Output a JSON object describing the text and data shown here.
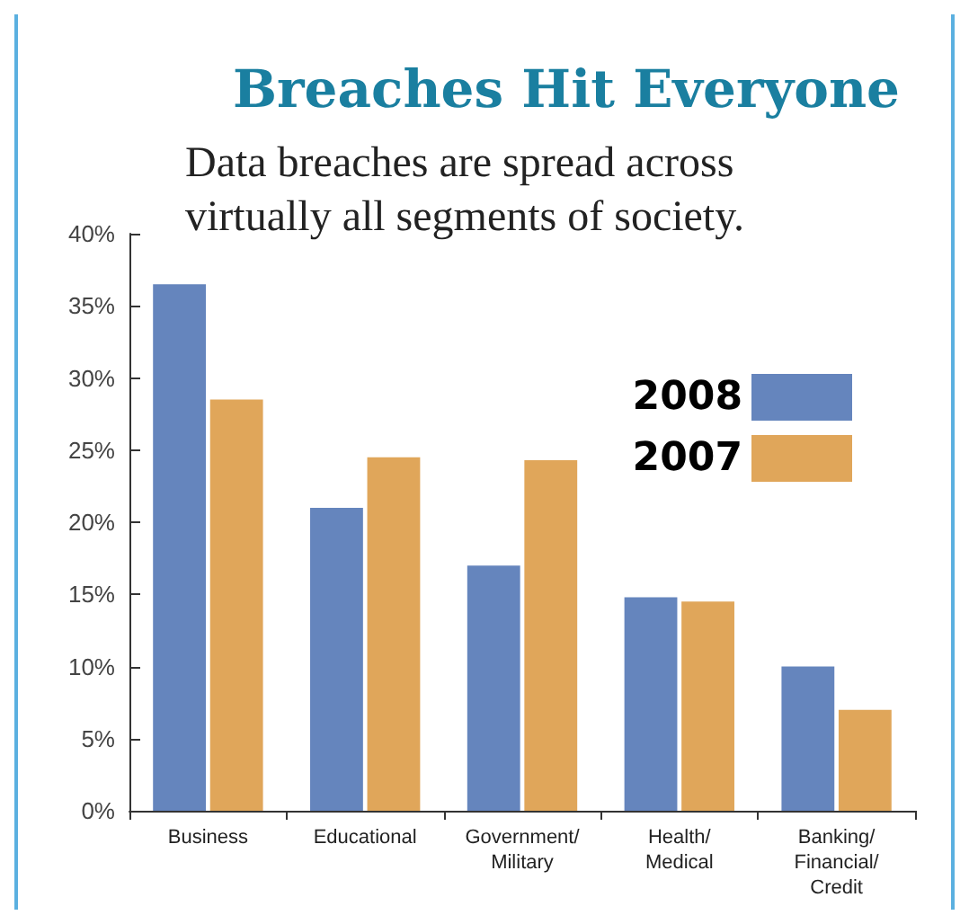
{
  "chart_data": {
    "type": "bar",
    "title": "Breaches Hit Everyone",
    "subtitle": "Data breaches are spread across\nvirtually all segments of society.",
    "categories": [
      "Business",
      "Educational",
      "Government/\nMilitary",
      "Health/\nMedical",
      "Banking/\nFinancial/\nCredit"
    ],
    "series": [
      {
        "name": "2008",
        "color": "#6585bd",
        "values": [
          36.5,
          21,
          17,
          14.8,
          10
        ]
      },
      {
        "name": "2007",
        "color": "#e0a65a",
        "values": [
          28.5,
          24.5,
          24.3,
          14.5,
          7
        ]
      }
    ],
    "ylim": [
      0,
      40
    ],
    "yticks": [
      {
        "value": 0,
        "label": "0%"
      },
      {
        "value": 5,
        "label": "5%"
      },
      {
        "value": 10,
        "label": "10%"
      },
      {
        "value": 15,
        "label": "15%"
      },
      {
        "value": 20,
        "label": "20%"
      },
      {
        "value": 25,
        "label": "25%"
      },
      {
        "value": 30,
        "label": "30%"
      },
      {
        "value": 35,
        "label": "35%"
      },
      {
        "value": 40,
        "label": "40%"
      }
    ],
    "grid": false,
    "legend": "top right"
  }
}
